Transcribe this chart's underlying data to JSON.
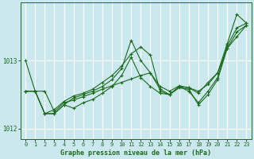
{
  "title": "Graphe pression niveau de la mer (hPa)",
  "bg_color": "#cce8ef",
  "grid_color": "#ffffff",
  "line_color": "#1a6b1a",
  "xlim": [
    -0.5,
    23.5
  ],
  "ylim": [
    1011.85,
    1013.85
  ],
  "yticks": [
    1012,
    1013
  ],
  "xticks": [
    0,
    1,
    2,
    3,
    4,
    5,
    6,
    7,
    8,
    9,
    10,
    11,
    12,
    13,
    14,
    15,
    16,
    17,
    18,
    19,
    20,
    21,
    22,
    23
  ],
  "series": [
    [
      1013.0,
      1012.55,
      1012.55,
      1012.25,
      1012.38,
      1012.42,
      1012.47,
      1012.52,
      1012.58,
      1012.63,
      1012.68,
      1012.73,
      1012.78,
      1012.82,
      1012.62,
      1012.55,
      1012.63,
      1012.6,
      1012.55,
      1012.65,
      1012.82,
      1013.25,
      1013.68,
      1013.55
    ],
    [
      1012.55,
      1012.55,
      1012.22,
      1012.22,
      1012.35,
      1012.3,
      1012.38,
      1012.43,
      1012.52,
      1012.62,
      1012.78,
      1013.05,
      1012.75,
      1012.62,
      1012.52,
      1012.5,
      1012.62,
      1012.55,
      1012.38,
      1012.55,
      1012.75,
      1013.22,
      1013.48,
      1013.55
    ],
    [
      1012.55,
      1012.55,
      1012.22,
      1012.22,
      1012.35,
      1012.45,
      1012.5,
      1012.55,
      1012.62,
      1012.72,
      1012.88,
      1013.3,
      1013.0,
      1012.82,
      1012.58,
      1012.5,
      1012.62,
      1012.6,
      1012.52,
      1012.68,
      1012.82,
      1013.18,
      1013.35,
      1013.52
    ],
    [
      1012.55,
      1012.55,
      1012.22,
      1012.28,
      1012.4,
      1012.48,
      1012.52,
      1012.58,
      1012.68,
      1012.78,
      1012.92,
      1013.1,
      1013.2,
      1013.08,
      1012.55,
      1012.5,
      1012.6,
      1012.58,
      1012.35,
      1012.5,
      1012.72,
      1013.18,
      1013.42,
      1013.52
    ]
  ]
}
